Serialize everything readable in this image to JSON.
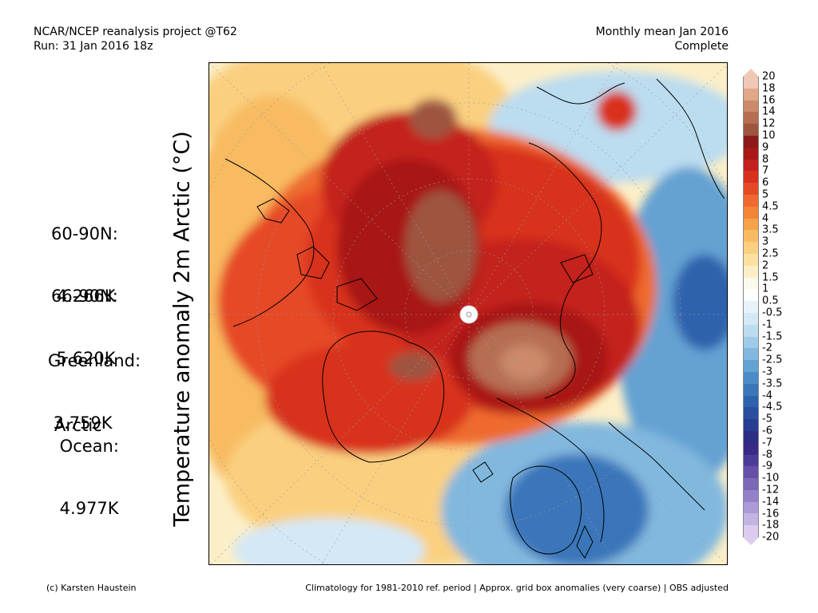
{
  "header": {
    "line1_left": "NCAR/NCEP reanalysis project @T62",
    "line2_left": "Run: 31 Jan 2016 18z",
    "line1_right": "Monthly mean Jan 2016",
    "line2_right": "Complete"
  },
  "vertical_title": "Temperature anomaly 2m Arctic (°C)",
  "stats": [
    {
      "label": "60-90N:",
      "value": " 4.266K"
    },
    {
      "label": "66-90N:",
      "value": " 5.620K"
    },
    {
      "label": "Greenland:",
      "value": " 3.759K"
    },
    {
      "label": "Arctic\n Ocean:",
      "value": " 4.977K"
    }
  ],
  "colorbar": {
    "labels": [
      "20",
      "18",
      "16",
      "14",
      "12",
      "10",
      "9",
      "8",
      "7",
      "6",
      "5",
      "4.5",
      "4",
      "3.5",
      "3",
      "2.5",
      "2",
      "1.5",
      "1",
      "0.5",
      "-0.5",
      "-1",
      "-1.5",
      "-2",
      "-2.5",
      "-3",
      "-3.5",
      "-4",
      "-4.5",
      "-5",
      "-6",
      "-7",
      "-8",
      "-9",
      "-10",
      "-12",
      "-14",
      "-16",
      "-18",
      "-20"
    ],
    "colors": [
      "#f0c8b4",
      "#e0a888",
      "#cc8a6a",
      "#b66e52",
      "#9e5540",
      "#8c1a1a",
      "#a81818",
      "#c4201e",
      "#d8311f",
      "#e64a25",
      "#ef6a2e",
      "#f38538",
      "#f6a24a",
      "#f8bb62",
      "#fad080",
      "#fbe0a0",
      "#fcefc8",
      "#fbf8ec",
      "#ffffff",
      "#e8f2fa",
      "#d4e8f6",
      "#bcdcf0",
      "#a0cbe8",
      "#82b8de",
      "#64a2d3",
      "#4a8cc7",
      "#3a76ba",
      "#2e62ad",
      "#2a4fa0",
      "#283c92",
      "#2c2d85",
      "#3a2a88",
      "#4e3a98",
      "#6450a8",
      "#7a68b8",
      "#9280c8",
      "#aa9ad6",
      "#c4b4e4",
      "#dccdf0"
    ]
  },
  "footer": {
    "left": "(c) Karsten Haustein",
    "right": "Climatology for 1981-2010 ref. period | Approx. grid box anomalies (very coarse) | OBS adjusted"
  }
}
